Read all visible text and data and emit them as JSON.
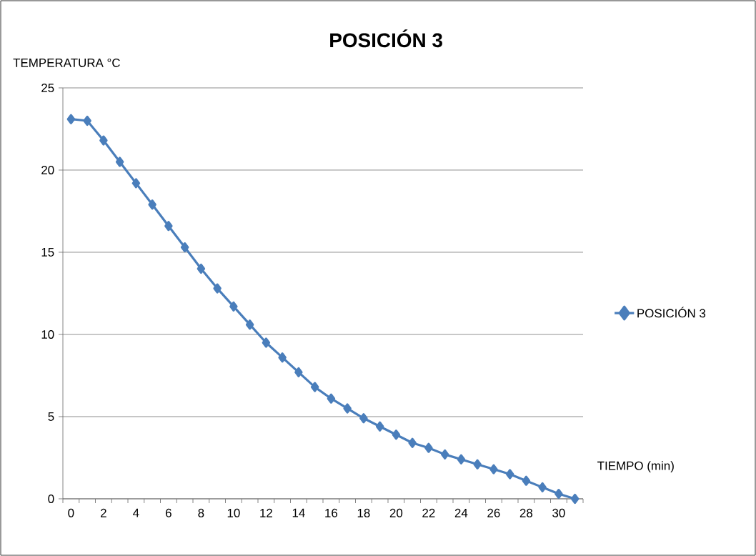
{
  "chart_data": {
    "type": "line",
    "title": "POSICIÓN 3",
    "xlabel": "TIEMPO (min)",
    "ylabel": "TEMPERATURA °C",
    "categories": [
      "0",
      null,
      "2",
      null,
      "4",
      null,
      "6",
      null,
      "8",
      null,
      "10",
      null,
      "12",
      null,
      "14",
      null,
      "16",
      null,
      "18",
      null,
      "20",
      null,
      "22",
      null,
      "24",
      null,
      "26",
      null,
      "28",
      null,
      "30",
      null
    ],
    "series": [
      {
        "name": "POSICIÓN 3",
        "color": "#4a7ebb",
        "values": [
          23.1,
          23.0,
          21.8,
          20.5,
          19.2,
          17.9,
          16.6,
          15.3,
          14.0,
          12.8,
          11.7,
          10.6,
          9.5,
          8.6,
          7.7,
          6.8,
          6.1,
          5.5,
          4.9,
          4.4,
          3.9,
          3.4,
          3.1,
          2.7,
          2.4,
          2.1,
          1.8,
          1.5,
          1.1,
          0.7,
          0.3,
          0.0
        ]
      }
    ],
    "ylim": [
      0,
      25
    ],
    "yticks": [
      0,
      5,
      10,
      15,
      20,
      25
    ],
    "grid": "y",
    "legend": "right",
    "marker": "diamond",
    "line_style": "solid"
  }
}
